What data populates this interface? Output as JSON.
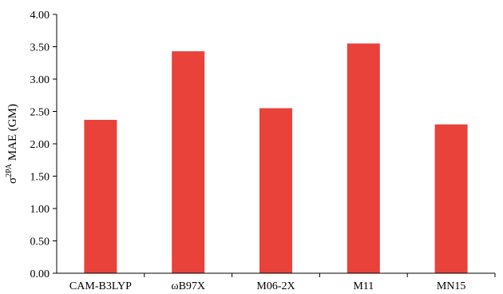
{
  "chart_data": {
    "type": "bar",
    "categories": [
      "CAM-B3LYP",
      "ωB97X",
      "M06-2X",
      "M11",
      "MN15"
    ],
    "values": [
      2.37,
      3.43,
      2.55,
      3.55,
      2.3
    ],
    "ylabel": {
      "base": "σ",
      "superscript": "2PA",
      "rest": " MAE (GM)"
    },
    "ylim": [
      0,
      4.0
    ],
    "yticks": [
      "0.00",
      "0.50",
      "1.00",
      "1.50",
      "2.00",
      "2.50",
      "3.00",
      "3.50",
      "4.00"
    ],
    "bar_color": "#e8423a",
    "grid": false,
    "legend": "none"
  }
}
